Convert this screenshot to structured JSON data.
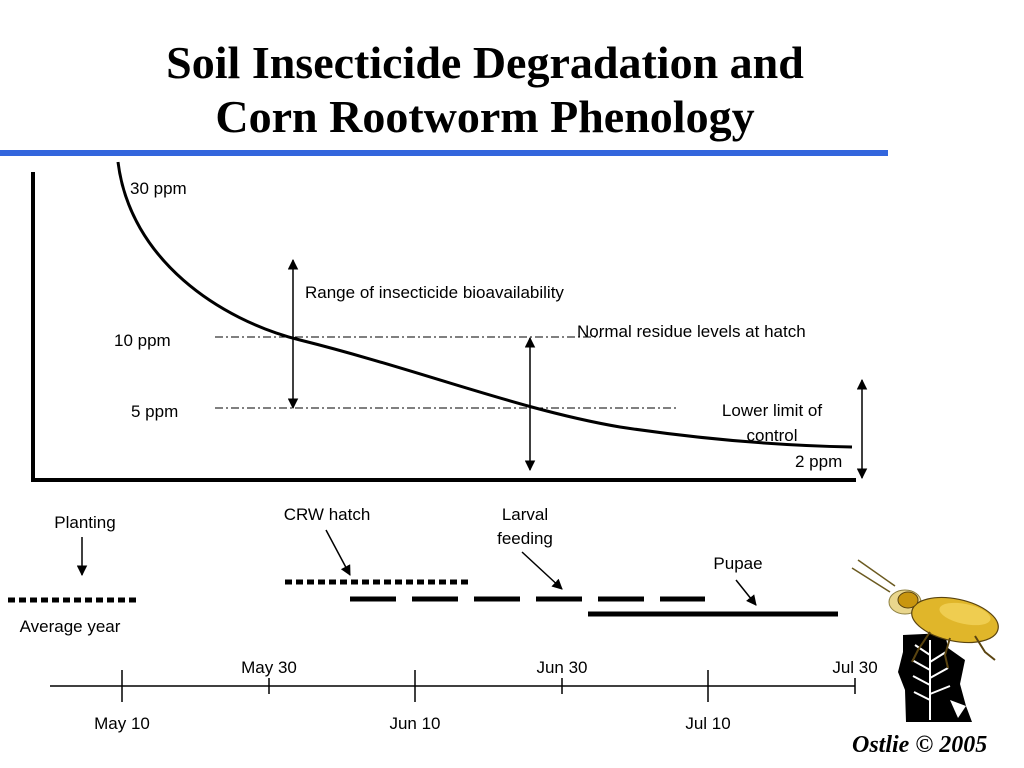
{
  "title": {
    "line1": "Soil Insecticide Degradation and",
    "line2": "Corn Rootworm Phenology"
  },
  "graph": {
    "label_30ppm": "30 ppm",
    "label_10ppm": "10 ppm",
    "label_5ppm": "5 ppm",
    "label_2ppm": "2 ppm",
    "range_label": "Range of insecticide bioavailability",
    "normal_residue_label": "Normal residue levels at hatch",
    "lower_limit_line1": "Lower limit of",
    "lower_limit_line2": "control"
  },
  "phenology": {
    "planting": "Planting",
    "average_year": "Average year",
    "crw_hatch": "CRW hatch",
    "larval_line1": "Larval",
    "larval_line2": "feeding",
    "pupae": "Pupae"
  },
  "timeline": {
    "top_labels": [
      "May 30",
      "Jun 30",
      "Jul 30"
    ],
    "bottom_labels": [
      "May 10",
      "Jun 10",
      "Jul 10"
    ]
  },
  "credit": "Ostlie © 2005",
  "colors": {
    "title_rule": "#3366dd",
    "beetle": "#e0b62a"
  },
  "icons": [
    "corn-rootworm-beetle-icon",
    "minnesota-map-icon"
  ]
}
